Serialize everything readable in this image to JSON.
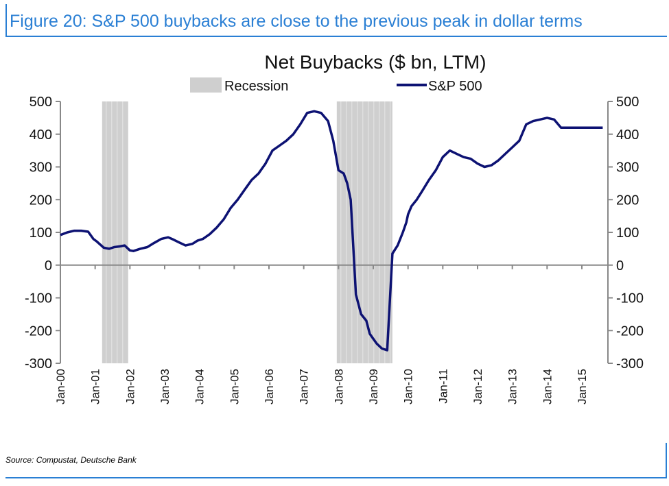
{
  "figure_title": "Figure 20: S&P 500 buybacks are close to the previous peak in dollar terms",
  "source": "Source: Compustat, Deutsche Bank",
  "colors": {
    "accent": "#2a7fd4",
    "series": "#0d1273",
    "recession": "#cfcfcf"
  },
  "chart_data": {
    "type": "line",
    "title": "Net Buybacks ($ bn, LTM)",
    "xlabel": "",
    "ylabel": "",
    "ylim": [
      -300,
      500
    ],
    "yticks": [
      500,
      400,
      300,
      200,
      100,
      0,
      -100,
      -200,
      -300
    ],
    "xticks": [
      "Jan-00",
      "Jan-01",
      "Jan-02",
      "Jan-03",
      "Jan-04",
      "Jan-05",
      "Jan-06",
      "Jan-07",
      "Jan-08",
      "Jan-09",
      "Jan-10",
      "Jan-11",
      "Jan-12",
      "Jan-13",
      "Jan-14",
      "Jan-15"
    ],
    "x_range": [
      2000.0,
      2015.75
    ],
    "grid": false,
    "legend": {
      "placement": "top",
      "entries": [
        "Recession",
        "S&P 500"
      ]
    },
    "recessions": [
      {
        "name": "Recession",
        "start": "Mar-01",
        "end": "Nov-01",
        "x0": 2001.2,
        "x1": 2001.95
      },
      {
        "name": "Recession",
        "start": "Dec-07",
        "end": "Jun-09",
        "x0": 2007.95,
        "x1": 2009.55
      }
    ],
    "series": [
      {
        "name": "S&P 500",
        "x": [
          2000.0,
          2000.2,
          2000.4,
          2000.6,
          2000.8,
          2000.95,
          2001.05,
          2001.25,
          2001.4,
          2001.55,
          2001.7,
          2001.85,
          2002.0,
          2002.1,
          2002.3,
          2002.5,
          2002.7,
          2002.9,
          2003.1,
          2003.25,
          2003.4,
          2003.6,
          2003.8,
          2003.95,
          2004.1,
          2004.3,
          2004.5,
          2004.7,
          2004.9,
          2005.1,
          2005.3,
          2005.5,
          2005.7,
          2005.9,
          2006.1,
          2006.3,
          2006.5,
          2006.7,
          2006.9,
          2007.1,
          2007.3,
          2007.5,
          2007.7,
          2007.85,
          2008.0,
          2008.15,
          2008.25,
          2008.35,
          2008.5,
          2008.65,
          2008.8,
          2008.9,
          2009.0,
          2009.1,
          2009.25,
          2009.4,
          2009.55,
          2009.7,
          2009.85,
          2009.95,
          2010.0,
          2010.1,
          2010.25,
          2010.4,
          2010.6,
          2010.8,
          2011.0,
          2011.2,
          2011.4,
          2011.6,
          2011.8,
          2012.0,
          2012.2,
          2012.4,
          2012.6,
          2012.8,
          2013.0,
          2013.2,
          2013.4,
          2013.6,
          2013.8,
          2014.0,
          2014.2,
          2014.4,
          2014.6,
          2014.8,
          2015.0,
          2015.2,
          2015.4,
          2015.6
        ],
        "values": [
          92,
          100,
          105,
          105,
          102,
          80,
          72,
          53,
          50,
          55,
          57,
          60,
          45,
          43,
          50,
          55,
          68,
          80,
          85,
          78,
          70,
          60,
          65,
          75,
          80,
          95,
          115,
          140,
          175,
          200,
          230,
          260,
          280,
          310,
          350,
          365,
          380,
          400,
          430,
          465,
          470,
          465,
          440,
          380,
          290,
          280,
          250,
          200,
          -90,
          -150,
          -170,
          -210,
          -225,
          -240,
          -255,
          -260,
          35,
          60,
          100,
          130,
          155,
          180,
          200,
          225,
          260,
          290,
          330,
          350,
          340,
          330,
          325,
          310,
          300,
          305,
          320,
          340,
          360,
          380,
          430,
          440,
          445,
          450,
          445,
          420,
          420,
          420,
          420,
          420,
          420,
          420
        ]
      }
    ]
  }
}
